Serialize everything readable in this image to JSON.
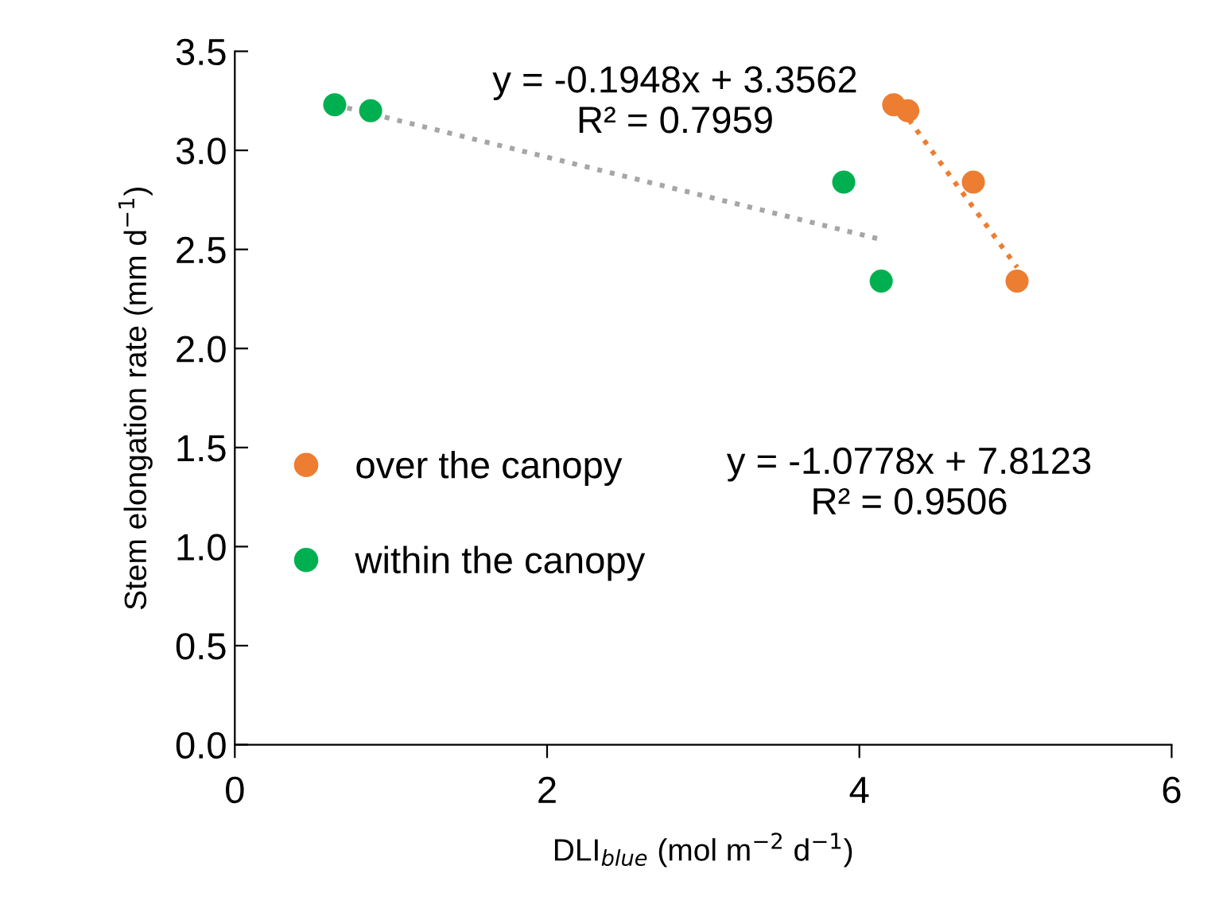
{
  "chart_data": {
    "type": "scatter",
    "xlabel": "DLI$_{blue}$ (mol m$^{−2}$ d$^{−1}$)",
    "ylabel": "Stem elongation rate (mm d$^{−1}$)",
    "xlim": [
      0,
      6
    ],
    "xticks": [
      0,
      2,
      4,
      6
    ],
    "ylim": [
      0,
      3.5
    ],
    "yticks": [
      {
        "value": 0,
        "label": "0.0"
      },
      {
        "value": 0.5,
        "label": "0.5"
      },
      {
        "value": 1,
        "label": "1.0"
      },
      {
        "value": 1.5,
        "label": "1.5"
      },
      {
        "value": 2,
        "label": "2.0"
      },
      {
        "value": 2.5,
        "label": "2.5"
      },
      {
        "value": 3,
        "label": "3.0"
      },
      {
        "value": 3.5,
        "label": "3.5"
      }
    ],
    "grid": false,
    "legend": "left",
    "marker": "circle",
    "series": [
      {
        "name": "over the canopy",
        "color": "#ed7d31",
        "x": [
          4.22,
          4.31,
          4.73,
          5.01
        ],
        "values": [
          3.23,
          3.2,
          2.84,
          2.34
        ]
      },
      {
        "name": "within the canopy",
        "color": "#00b050",
        "x": [
          0.64,
          0.87,
          3.9,
          4.14
        ],
        "values": [
          3.23,
          3.2,
          2.84,
          2.34
        ]
      },
      {
        "type": "line",
        "color": "#ed7d31",
        "line_style": "dotted",
        "marker": "none",
        "x": [
          4.22,
          5.01
        ],
        "values": [
          3.26,
          2.41
        ]
      },
      {
        "type": "line",
        "color": "#a6a6a6",
        "line_style": "dotted",
        "marker": "none",
        "x": [
          0.64,
          4.14
        ],
        "values": [
          3.23,
          2.55
        ]
      }
    ],
    "annotations": [
      "y = -0.1948x + 3.3562\nR² = 0.7959",
      "y = -1.0778x + 7.8123\nR² = 0.9506"
    ]
  }
}
